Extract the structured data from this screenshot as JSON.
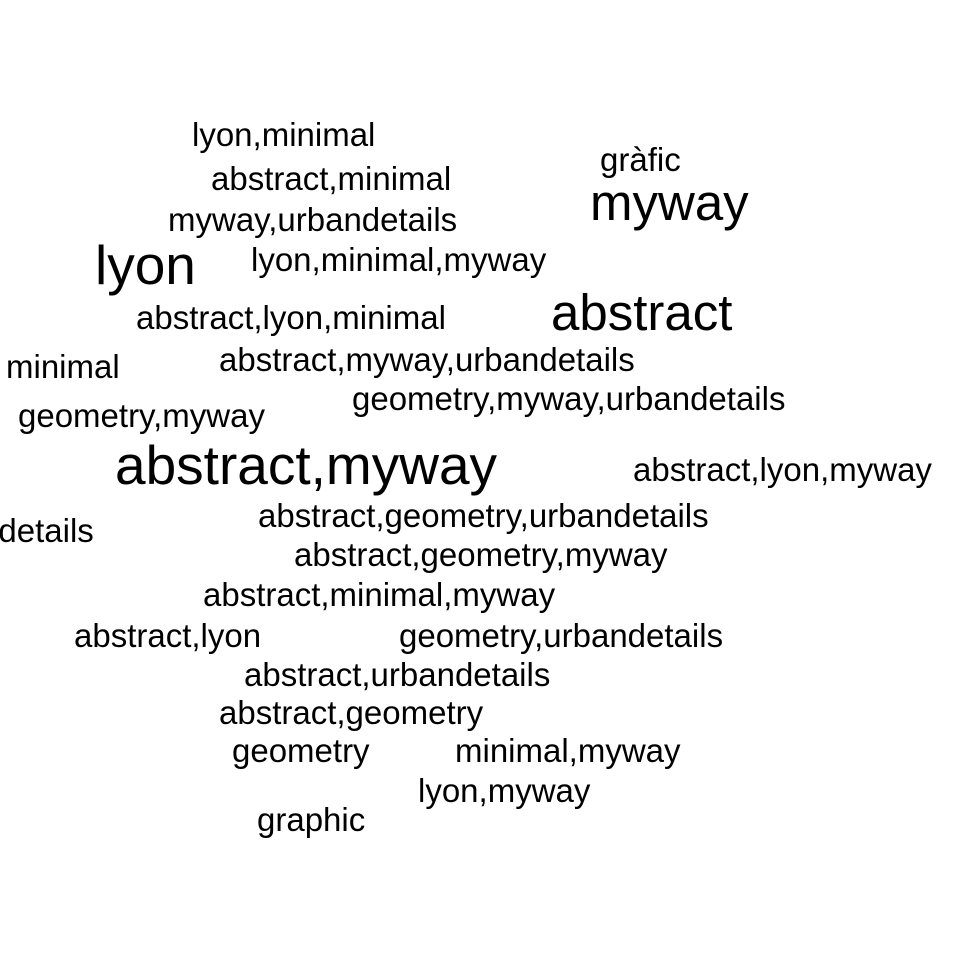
{
  "words": [
    {
      "text": "lyon,minimal"
    },
    {
      "text": "gràfic"
    },
    {
      "text": "abstract,minimal"
    },
    {
      "text": "myway"
    },
    {
      "text": "myway,urbandetails"
    },
    {
      "text": "lyon"
    },
    {
      "text": "lyon,minimal,myway"
    },
    {
      "text": "abstract"
    },
    {
      "text": "abstract,lyon,minimal"
    },
    {
      "text": "minimal"
    },
    {
      "text": "abstract,myway,urbandetails"
    },
    {
      "text": "geometry,myway,urbandetails"
    },
    {
      "text": "geometry,myway"
    },
    {
      "text": "abstract,myway"
    },
    {
      "text": "abstract,lyon,myway"
    },
    {
      "text": "urbandetails"
    },
    {
      "text": "abstract,geometry,urbandetails"
    },
    {
      "text": "abstract,geometry,myway"
    },
    {
      "text": "abstract,minimal,myway"
    },
    {
      "text": "abstract,lyon"
    },
    {
      "text": "geometry,urbandetails"
    },
    {
      "text": "abstract,urbandetails"
    },
    {
      "text": "abstract,geometry"
    },
    {
      "text": "geometry"
    },
    {
      "text": "minimal,myway"
    },
    {
      "text": "lyon,myway"
    },
    {
      "text": "graphic"
    }
  ]
}
